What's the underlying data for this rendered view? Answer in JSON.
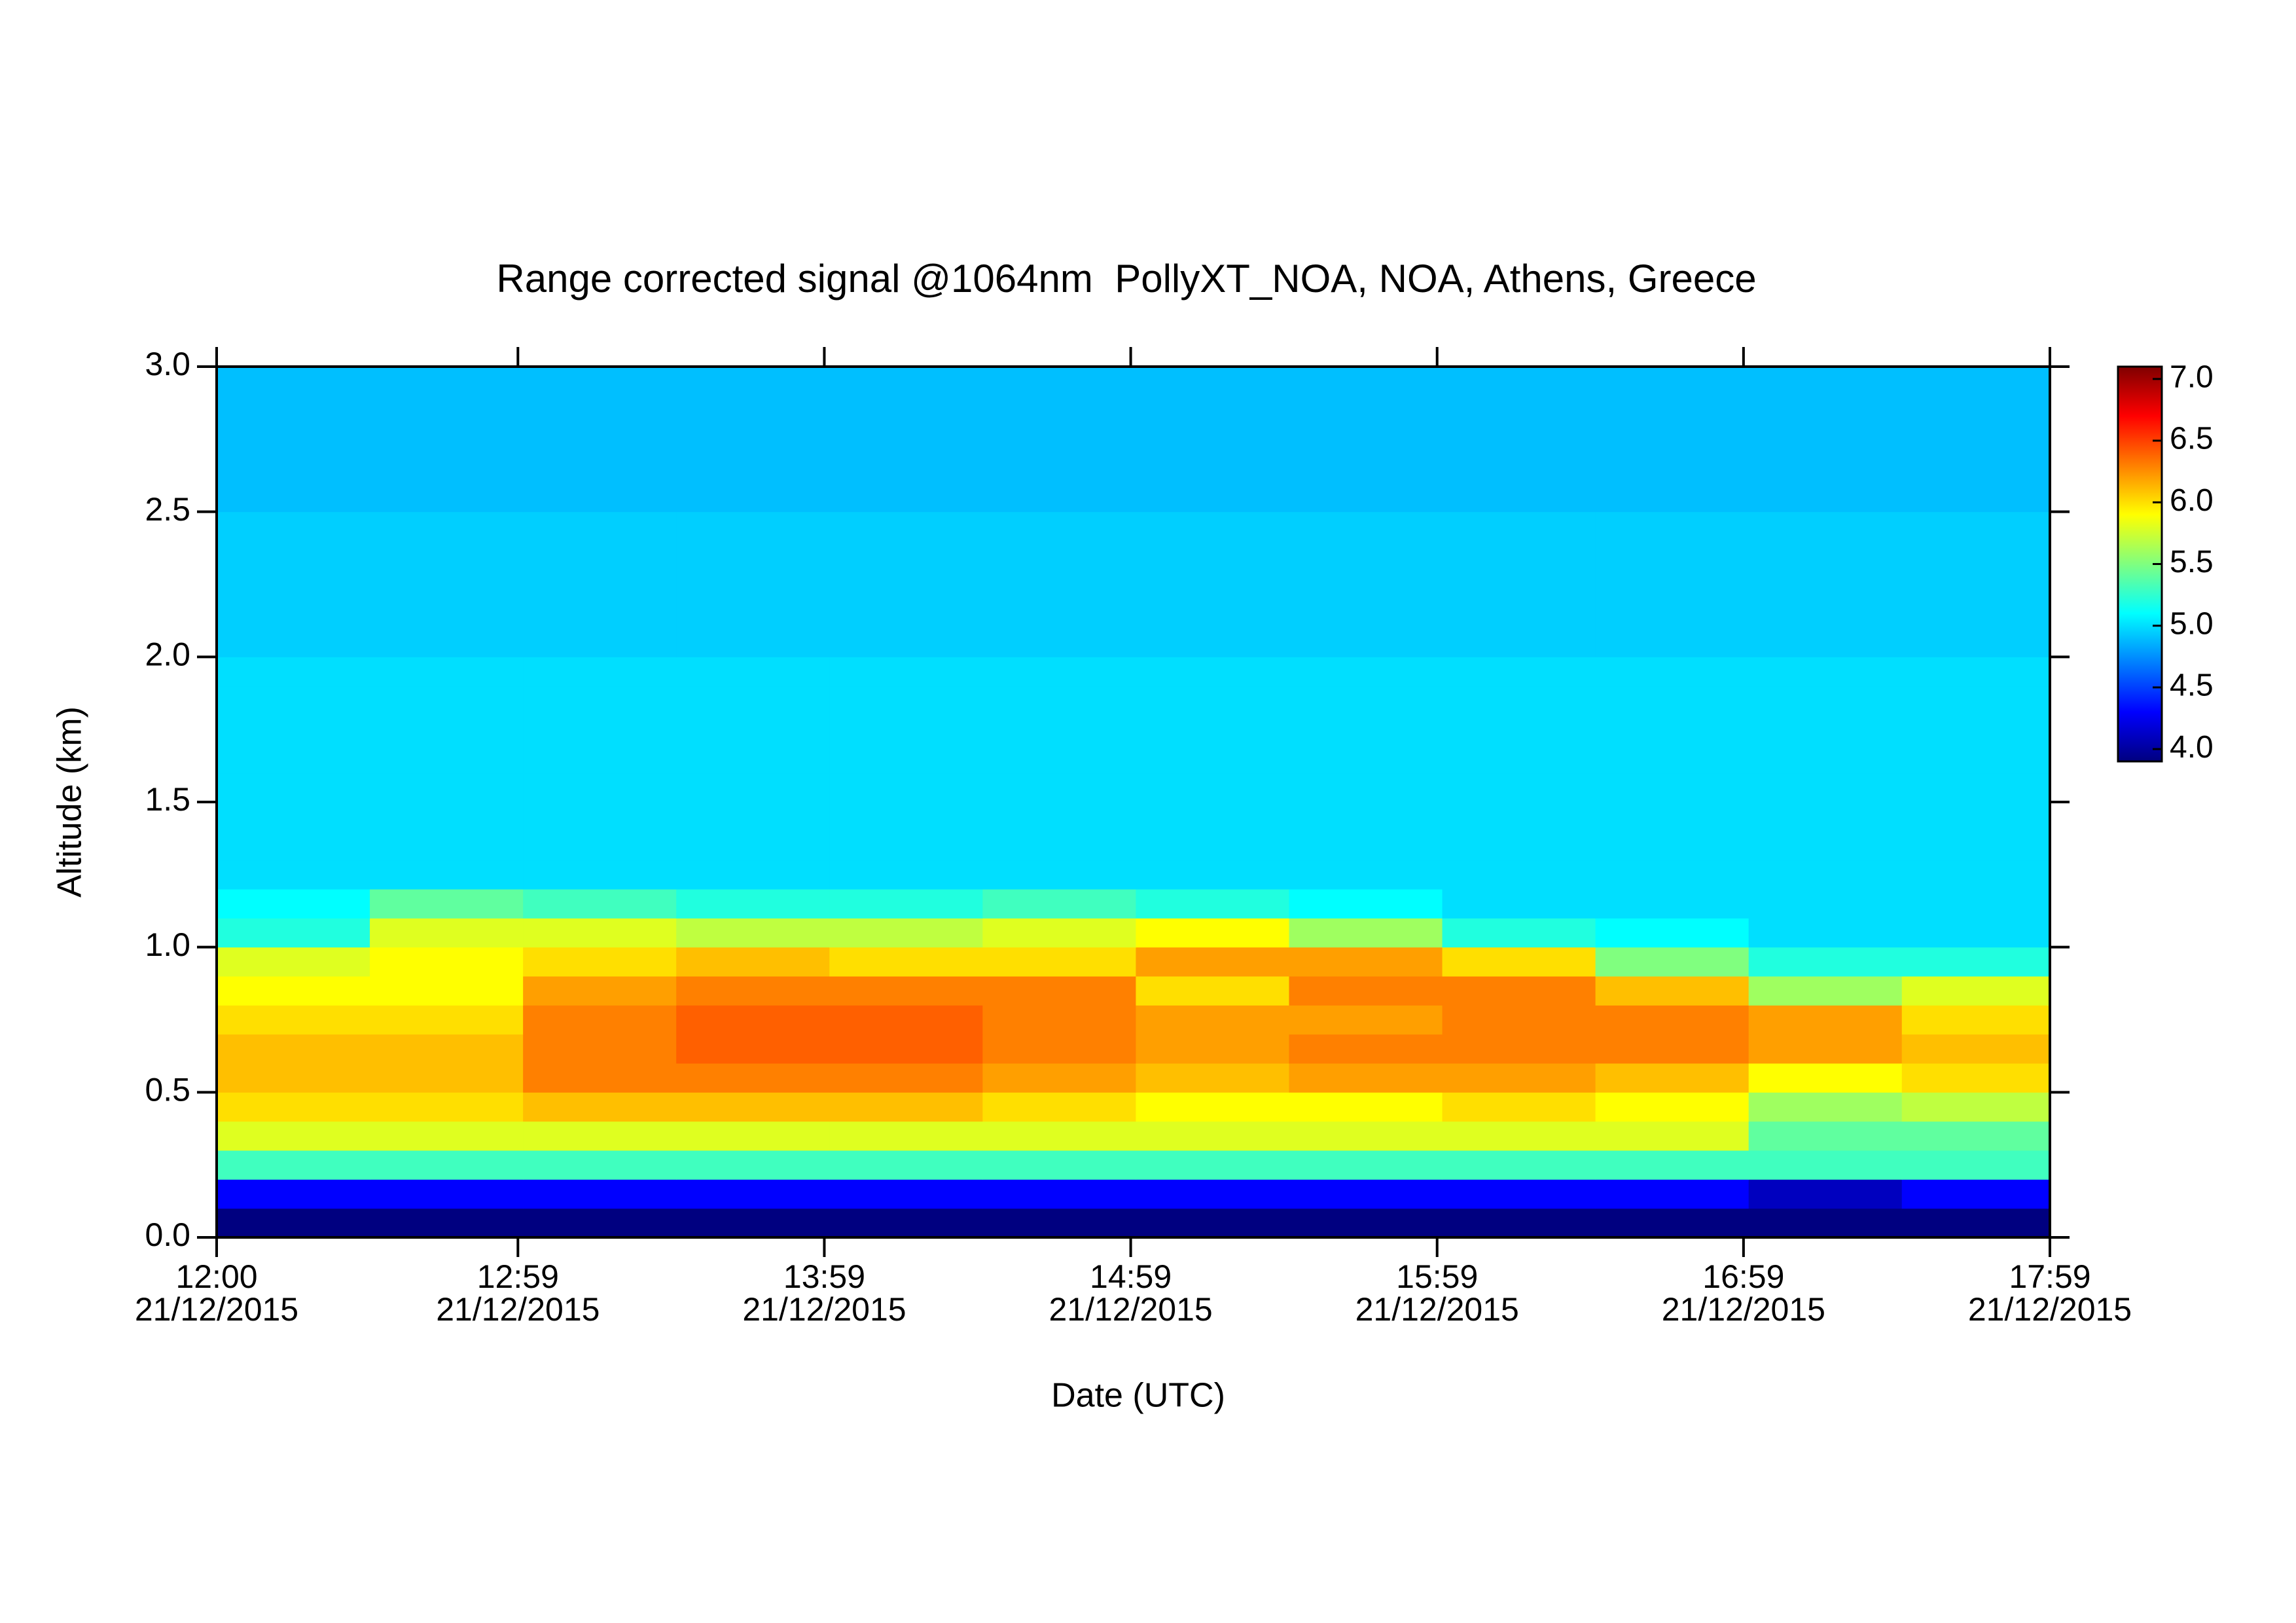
{
  "chart_data": {
    "type": "heatmap",
    "title": "Range corrected signal @1064nm  PollyXT_NOA, NOA, Athens, Greece",
    "x_label": "Date (UTC)",
    "y_label": "Altitude (km)",
    "xlim": [
      12,
      17.9833
    ],
    "xticks": [
      {
        "value": 12,
        "label": "12:00\n21/12/2015"
      },
      {
        "value": 12.9833,
        "label": "12:59\n21/12/2015"
      },
      {
        "value": 13.9833,
        "label": "13:59\n21/12/2015"
      },
      {
        "value": 14.9833,
        "label": "14:59\n21/12/2015"
      },
      {
        "value": 15.9833,
        "label": "15:59\n21/12/2015"
      },
      {
        "value": 16.9833,
        "label": "16:59\n21/12/2015"
      },
      {
        "value": 17.9833,
        "label": "17:59\n21/12/2015"
      }
    ],
    "ylim": [
      0,
      3.0
    ],
    "yticks": [
      {
        "value": 0,
        "label": "0.0"
      },
      0.5,
      {
        "value": 1,
        "label": "1.0"
      },
      1.5,
      {
        "value": 2,
        "label": "2.0"
      },
      2.5,
      {
        "value": 3,
        "label": "3.0"
      }
    ],
    "zlim": [
      3.9,
      7.1
    ],
    "zticks": [
      {
        "value": 4,
        "label": "4.0"
      },
      4.5,
      {
        "value": 5,
        "label": "5.0"
      },
      5.5,
      {
        "value": 6,
        "label": "6.0"
      },
      6.5,
      {
        "value": 7,
        "label": "7.0"
      }
    ],
    "colormap": "jet",
    "x": [
      12.25,
      12.75,
      13.25,
      13.75,
      14.25,
      14.75,
      15.25,
      15.75,
      16.25,
      16.75,
      17.25,
      17.75
    ],
    "y": [
      0.05,
      0.15,
      0.25,
      0.35,
      0.45,
      0.55,
      0.65,
      0.75,
      0.85,
      0.95,
      1.05,
      1.15,
      1.25,
      1.35,
      1.45,
      1.55,
      1.65,
      1.75,
      1.85,
      1.95,
      2.05,
      2.15,
      2.25,
      2.35,
      2.45,
      2.55,
      2.65,
      2.75,
      2.85,
      2.95
    ],
    "z": [
      [
        3.9,
        3.9,
        3.9,
        3.9,
        3.9,
        3.9,
        3.9,
        3.9,
        3.9,
        3.9,
        3.9,
        3.9
      ],
      [
        4.3,
        4.3,
        4.3,
        4.3,
        4.3,
        4.3,
        4.3,
        4.3,
        4.3,
        4.3,
        4.1,
        4.3
      ],
      [
        5.3,
        5.3,
        5.3,
        5.3,
        5.3,
        5.3,
        5.3,
        5.3,
        5.3,
        5.3,
        5.3,
        5.3
      ],
      [
        5.8,
        5.8,
        5.8,
        5.8,
        5.8,
        5.8,
        5.8,
        5.8,
        5.8,
        5.8,
        5.4,
        5.4
      ],
      [
        6.0,
        6.0,
        6.1,
        6.1,
        6.1,
        6.0,
        5.9,
        5.9,
        6.0,
        5.9,
        5.6,
        5.7
      ],
      [
        6.1,
        6.1,
        6.3,
        6.3,
        6.3,
        6.2,
        6.1,
        6.2,
        6.2,
        6.1,
        5.9,
        6.0
      ],
      [
        6.1,
        6.1,
        6.3,
        6.4,
        6.4,
        6.3,
        6.2,
        6.3,
        6.3,
        6.3,
        6.2,
        6.1
      ],
      [
        6.0,
        6.0,
        6.3,
        6.4,
        6.4,
        6.3,
        6.2,
        6.2,
        6.3,
        6.3,
        6.2,
        6.0
      ],
      [
        5.9,
        5.9,
        6.2,
        6.3,
        6.3,
        6.3,
        6.0,
        6.3,
        6.3,
        6.1,
        5.6,
        5.8
      ],
      [
        5.8,
        5.9,
        6.0,
        6.1,
        6.0,
        6.0,
        6.2,
        6.2,
        6.0,
        5.5,
        5.2,
        5.2
      ],
      [
        5.2,
        5.8,
        5.8,
        5.7,
        5.7,
        5.8,
        5.9,
        5.6,
        5.2,
        5.1,
        5.0,
        5.0
      ],
      [
        5.1,
        5.4,
        5.3,
        5.2,
        5.2,
        5.3,
        5.2,
        5.1,
        5.0,
        5.0,
        5.0,
        5.0
      ],
      [
        5.0,
        5.0,
        5.0,
        5.0,
        5.0,
        5.0,
        5.0,
        5.0,
        5.0,
        5.0,
        5.0,
        5.0
      ],
      [
        5.0,
        5.0,
        5.0,
        5.0,
        5.0,
        5.0,
        5.0,
        5.0,
        5.0,
        5.0,
        5.0,
        5.0
      ],
      [
        5.0,
        5.0,
        5.0,
        5.0,
        5.0,
        5.0,
        5.0,
        5.0,
        5.0,
        5.0,
        5.0,
        5.0
      ],
      [
        5.0,
        5.0,
        5.0,
        5.0,
        5.0,
        5.0,
        5.0,
        5.0,
        5.0,
        5.0,
        5.0,
        5.0
      ],
      [
        5.0,
        5.0,
        5.0,
        5.0,
        5.0,
        5.0,
        5.0,
        5.0,
        5.0,
        5.0,
        5.0,
        5.0
      ],
      [
        5.0,
        5.0,
        5.0,
        5.0,
        5.0,
        5.0,
        5.0,
        5.0,
        5.0,
        5.0,
        5.0,
        5.0
      ],
      [
        5.0,
        5.0,
        5.0,
        5.0,
        5.0,
        5.0,
        5.0,
        5.0,
        5.0,
        5.0,
        5.0,
        5.0
      ],
      [
        5.0,
        5.0,
        5.0,
        5.0,
        5.0,
        5.0,
        5.0,
        5.0,
        5.0,
        5.0,
        5.0,
        5.0
      ],
      [
        4.95,
        4.95,
        4.95,
        4.95,
        4.95,
        4.95,
        4.95,
        4.95,
        4.95,
        4.95,
        4.95,
        4.95
      ],
      [
        4.95,
        4.95,
        4.95,
        4.95,
        4.95,
        4.95,
        4.95,
        4.95,
        4.95,
        4.95,
        4.95,
        4.95
      ],
      [
        4.95,
        4.95,
        4.95,
        4.95,
        4.95,
        4.95,
        4.95,
        4.95,
        4.95,
        4.95,
        4.95,
        4.95
      ],
      [
        4.95,
        4.95,
        4.95,
        4.95,
        4.95,
        4.95,
        4.95,
        4.95,
        4.95,
        4.95,
        4.95,
        4.95
      ],
      [
        4.95,
        4.95,
        4.95,
        4.95,
        4.95,
        4.95,
        4.95,
        4.95,
        4.95,
        4.95,
        4.95,
        4.95
      ],
      [
        4.9,
        4.9,
        4.9,
        4.9,
        4.9,
        4.9,
        4.9,
        4.9,
        4.9,
        4.9,
        4.9,
        4.9
      ],
      [
        4.9,
        4.9,
        4.9,
        4.9,
        4.9,
        4.9,
        4.9,
        4.9,
        4.9,
        4.9,
        4.9,
        4.9
      ],
      [
        4.9,
        4.9,
        4.9,
        4.9,
        4.9,
        4.9,
        4.9,
        4.9,
        4.9,
        4.9,
        4.9,
        4.9
      ],
      [
        4.9,
        4.9,
        4.9,
        4.9,
        4.9,
        4.9,
        4.9,
        4.9,
        4.9,
        4.9,
        4.9,
        4.9
      ],
      [
        4.9,
        4.9,
        4.9,
        4.9,
        4.9,
        4.9,
        4.9,
        4.9,
        4.9,
        4.9,
        4.9,
        4.9
      ]
    ]
  }
}
